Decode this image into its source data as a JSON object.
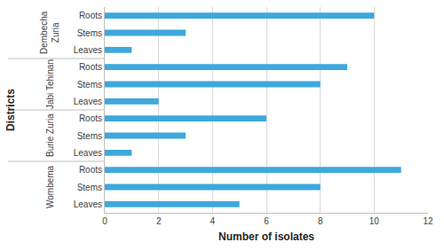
{
  "chart_data": {
    "type": "bar",
    "orientation": "horizontal",
    "x_label": "Number of isolates",
    "y_label": "Districts",
    "color": "#3ea8dc",
    "groups": [
      {
        "label": "Wombema",
        "categories": [
          "Leaves",
          "Stems",
          "Roots"
        ],
        "values": [
          5,
          8,
          11
        ]
      },
      {
        "label": "Burie Zuria",
        "categories": [
          "Leaves",
          "Stems",
          "Roots"
        ],
        "values": [
          1,
          3,
          6
        ]
      },
      {
        "label": "Jabi Tehinan",
        "categories": [
          "Leaves",
          "Stems",
          "Roots"
        ],
        "values": [
          2,
          8,
          9
        ]
      },
      {
        "label": "Dembecha Zuria",
        "categories": [
          "Leaves",
          "Stems",
          "Roots"
        ],
        "values": [
          1,
          3,
          10
        ]
      }
    ],
    "xlim": [
      0,
      12
    ],
    "xticks": [
      0,
      2,
      4,
      6,
      8,
      10,
      12
    ],
    "grid": true
  }
}
